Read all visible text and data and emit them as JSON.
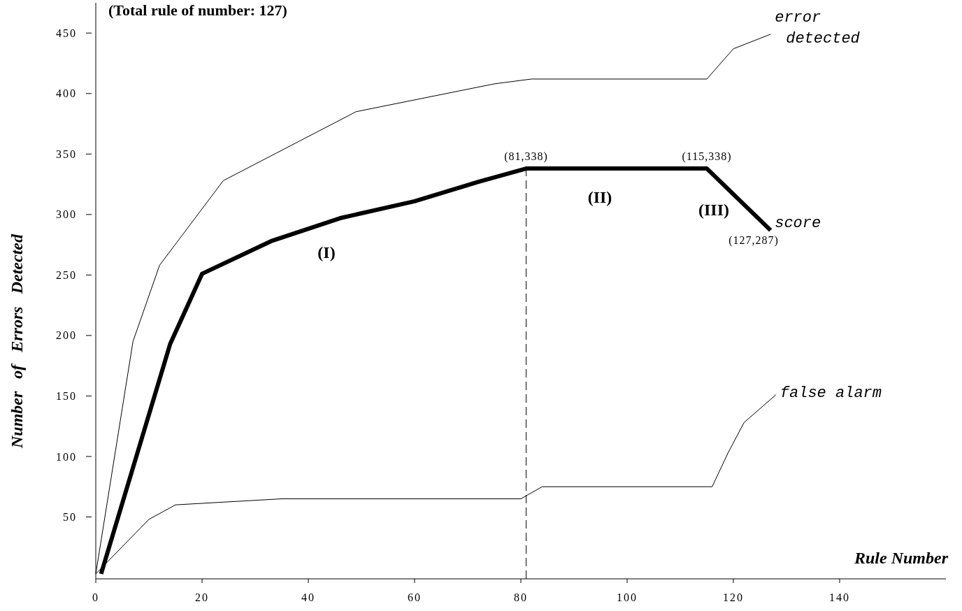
{
  "chart_data": {
    "type": "line",
    "title": "(Total rule of number: 127)",
    "xlabel": "Rule Number",
    "ylabel": "Number   of   Errors   Detected",
    "xlim": [
      0,
      160
    ],
    "ylim": [
      0,
      475
    ],
    "xticks": [
      0,
      20,
      40,
      60,
      80,
      100,
      120,
      140
    ],
    "yticks": [
      50,
      100,
      150,
      200,
      250,
      300,
      350,
      400,
      450
    ],
    "grid": false,
    "marker": "none",
    "line_style": "solid",
    "series": [
      {
        "name": "score",
        "color": "#000000",
        "x": [
          1,
          14,
          20,
          33,
          46,
          60,
          72,
          81,
          115,
          127
        ],
        "values": [
          3,
          193,
          251,
          278,
          297,
          311,
          327,
          338,
          338,
          287
        ]
      },
      {
        "name": "error detected",
        "color": "#000000",
        "x": [
          0,
          7,
          12,
          24,
          49,
          75,
          82,
          115,
          120,
          127
        ],
        "values": [
          3,
          195,
          258,
          328,
          385,
          408,
          412,
          412,
          437,
          449
        ]
      },
      {
        "name": "false alarm",
        "color": "#000000",
        "x": [
          0,
          10,
          15,
          35,
          80,
          84,
          116,
          119,
          122,
          128
        ],
        "values": [
          3,
          48,
          60,
          65,
          65,
          75,
          75,
          103,
          128,
          151
        ]
      }
    ],
    "ref_lines": [
      {
        "axis": "x",
        "value": 81,
        "line_style": "dashed",
        "color": "#000000"
      }
    ],
    "annotations": [
      {
        "text": "(81,338)",
        "x": 81,
        "y": 338
      },
      {
        "text": "(115,338)",
        "x": 115,
        "y": 338
      },
      {
        "text": "(127,287)",
        "x": 127,
        "y": 287
      },
      "(I)",
      "(II)",
      "(III)"
    ]
  }
}
